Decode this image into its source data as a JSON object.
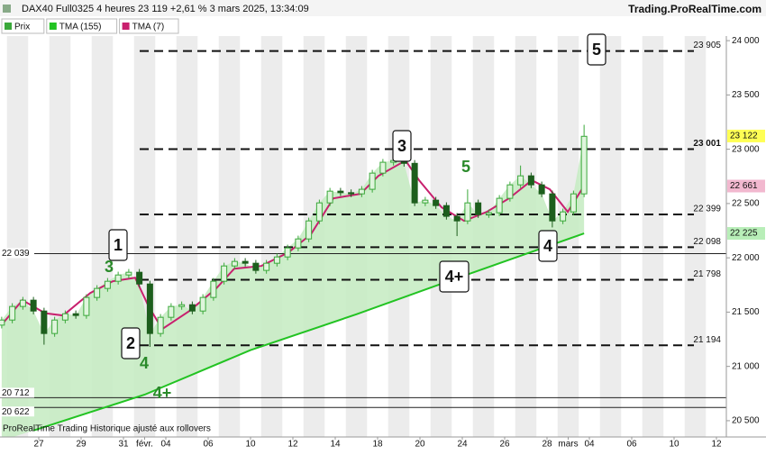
{
  "chart_data": {
    "type": "candlestick",
    "title": "DAX40 Full0325 4 heures 23 119 +2,61 % 3 mars 2025, 13:34:09",
    "source": "Trading.ProRealTime.com",
    "footer": "ProRealTime Trading  Historique ajusté aux rollovers",
    "xlim": [
      -1.83,
      34.34
    ],
    "ylim": [
      20350,
      24225
    ],
    "xticks": [
      {
        "value": 0,
        "label": "27"
      },
      {
        "value": 2,
        "label": "29"
      },
      {
        "value": 4,
        "label": "31"
      },
      {
        "value": 5,
        "label": "févr."
      },
      {
        "value": 6,
        "label": "04"
      },
      {
        "value": 8,
        "label": "06"
      },
      {
        "value": 10,
        "label": "10"
      },
      {
        "value": 12,
        "label": "12"
      },
      {
        "value": 14,
        "label": "14"
      },
      {
        "value": 16,
        "label": "18"
      },
      {
        "value": 18,
        "label": "20"
      },
      {
        "value": 20,
        "label": "24"
      },
      {
        "value": 22,
        "label": "26"
      },
      {
        "value": 24,
        "label": "28"
      },
      {
        "value": 25,
        "label": "mars"
      },
      {
        "value": 26,
        "label": "04"
      },
      {
        "value": 28,
        "label": "06"
      },
      {
        "value": 30,
        "label": "10"
      },
      {
        "value": 32,
        "label": "12"
      }
    ],
    "yticks": [
      {
        "value": 24000,
        "label": "24 000"
      },
      {
        "value": 23500,
        "label": "23 500"
      },
      {
        "value": 23000,
        "label": "23 000"
      },
      {
        "value": 22500,
        "label": "22 500"
      },
      {
        "value": 22000,
        "label": "22 000"
      },
      {
        "value": 21500,
        "label": "21 500"
      },
      {
        "value": 21000,
        "label": "21 000"
      },
      {
        "value": 20500,
        "label": "20 500"
      }
    ],
    "candles": {
      "name": "Prix",
      "up_color": "#3aa83a",
      "down_color": "#1d5e1d",
      "area_color": "#c8ecc4",
      "x": [
        -1.75,
        -1.25,
        -0.75,
        -0.25,
        0.25,
        0.75,
        1.25,
        1.75,
        2.25,
        2.75,
        3.25,
        3.75,
        4.25,
        4.75,
        5.25,
        5.75,
        6.25,
        6.75,
        7.25,
        7.75,
        8.25,
        8.75,
        9.25,
        9.75,
        10.25,
        10.75,
        11.25,
        11.75,
        12.25,
        12.75,
        13.25,
        13.75,
        14.25,
        14.75,
        15.25,
        15.75,
        16.25,
        16.75,
        17.25,
        17.75,
        18.25,
        18.75,
        19.25,
        19.75,
        20.25,
        20.75,
        21.25,
        21.75,
        22.25,
        22.75,
        23.25,
        23.75,
        24.25,
        24.75,
        25.25,
        25.75
      ],
      "open": [
        21380,
        21427,
        21552,
        21610,
        21510,
        21303,
        21427,
        21485,
        21469,
        21635,
        21718,
        21784,
        21842,
        21867,
        21759,
        21303,
        21452,
        21552,
        21568,
        21510,
        21635,
        21784,
        21925,
        21967,
        21950,
        21884,
        21950,
        22008,
        22091,
        22174,
        22340,
        22506,
        22614,
        22600,
        22589,
        22631,
        22780,
        22880,
        22896,
        22870,
        22506,
        22531,
        22481,
        22382,
        22340,
        22506,
        22398,
        22415,
        22548,
        22672,
        22755,
        22672,
        22589,
        22340,
        22423,
        22589
      ],
      "high": [
        21457,
        21582,
        21640,
        21640,
        21540,
        21457,
        21515,
        21515,
        21665,
        21748,
        21814,
        21872,
        21897,
        21897,
        21789,
        21482,
        21582,
        21598,
        21598,
        21665,
        21814,
        21955,
        21997,
        21997,
        21980,
        21980,
        22038,
        22121,
        22204,
        22370,
        22536,
        22644,
        22644,
        22630,
        22661,
        22810,
        22910,
        22926,
        22926,
        22900,
        22561,
        22561,
        22511,
        22412,
        22630,
        22536,
        22445,
        22578,
        22702,
        22850,
        22785,
        22702,
        22619,
        22453,
        22619,
        23225
      ],
      "low": [
        21350,
        21397,
        21522,
        21480,
        21200,
        21273,
        21397,
        21439,
        21439,
        21605,
        21688,
        21754,
        21812,
        21729,
        21180,
        21273,
        21422,
        21522,
        21480,
        21480,
        21605,
        21754,
        21895,
        21920,
        21854,
        21854,
        21920,
        21978,
        22061,
        22144,
        22310,
        22476,
        22570,
        22559,
        22559,
        22601,
        22750,
        22850,
        22840,
        22476,
        22476,
        22451,
        22352,
        22200,
        22310,
        22368,
        22368,
        22385,
        22518,
        22642,
        22642,
        22559,
        22280,
        22310,
        22393,
        22559
      ],
      "close": [
        21427,
        21552,
        21610,
        21510,
        21303,
        21427,
        21485,
        21469,
        21635,
        21718,
        21784,
        21842,
        21867,
        21759,
        21303,
        21452,
        21552,
        21568,
        21510,
        21635,
        21784,
        21925,
        21967,
        21950,
        21884,
        21950,
        22008,
        22091,
        22174,
        22340,
        22506,
        22614,
        22600,
        22589,
        22631,
        22780,
        22880,
        22896,
        22870,
        22506,
        22531,
        22481,
        22382,
        22340,
        22506,
        22398,
        22415,
        22548,
        22672,
        22755,
        22672,
        22589,
        22340,
        22423,
        22589,
        23119
      ]
    },
    "series": [
      {
        "name": "TMA (155)",
        "color": "#22c322",
        "x": [
          -0.25,
          5,
          10,
          15,
          20,
          25.75
        ],
        "values": [
          20410,
          20740,
          21150,
          21480,
          21830,
          22225
        ]
      },
      {
        "name": "TMA (7)",
        "color": "#c8206e",
        "x": [
          -1.74,
          -0.77,
          0.3,
          1.15,
          2.43,
          3.49,
          4.55,
          5.19,
          5.83,
          7.11,
          8.38,
          9.23,
          10.51,
          11.79,
          12.85,
          13.91,
          15.19,
          16.04,
          17.32,
          17.96,
          19.02,
          20.09,
          21.15,
          22.21,
          23.28,
          24.13,
          24.98,
          25.74
        ],
        "values": [
          21386,
          21610,
          21490,
          21469,
          21676,
          21784,
          21817,
          21552,
          21344,
          21510,
          21718,
          21900,
          21925,
          22050,
          22216,
          22548,
          22589,
          22755,
          22896,
          22714,
          22465,
          22340,
          22423,
          22548,
          22714,
          22631,
          22423,
          22661
        ]
      }
    ],
    "price_tags": [
      {
        "value": 23122,
        "label": "23 122",
        "color": "#ffff55"
      },
      {
        "value": 22661,
        "label": "22 661",
        "color": "#f2b8cf"
      },
      {
        "value": 22225,
        "label": "22 225",
        "color": "#b8eeb8"
      }
    ],
    "levels_dashed": [
      {
        "value": 23905,
        "label": "23 905"
      },
      {
        "value": 23001,
        "label": "23 001"
      },
      {
        "value": 22399,
        "label": "22 399"
      },
      {
        "value": 22098,
        "label": "22 098"
      },
      {
        "value": 21798,
        "label": "21 798"
      },
      {
        "value": 21194,
        "label": "21 194"
      }
    ],
    "levels_solid": [
      {
        "value": 22039,
        "label": "22 039"
      },
      {
        "value": 20712,
        "label": "20 712"
      },
      {
        "value": 20622,
        "label": "20 622"
      }
    ],
    "boxed_annotations": [
      "1",
      "2",
      "3",
      "4",
      "5",
      "4+"
    ],
    "wave_annotations": [
      "3",
      "4",
      "4+",
      "5"
    ]
  }
}
